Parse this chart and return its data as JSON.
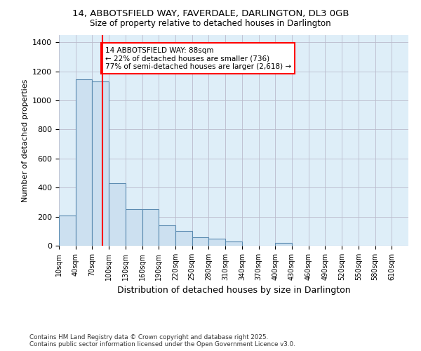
{
  "title_line1": "14, ABBOTSFIELD WAY, FAVERDALE, DARLINGTON, DL3 0GB",
  "title_line2": "Size of property relative to detached houses in Darlington",
  "xlabel": "Distribution of detached houses by size in Darlington",
  "ylabel": "Number of detached properties",
  "bar_color": "#cce0f0",
  "bar_edge_color": "#5a8ab0",
  "bg_color": "#deeef8",
  "grid_color": "#bbbbcc",
  "annotation_text": "14 ABBOTSFIELD WAY: 88sqm\n← 22% of detached houses are smaller (736)\n77% of semi-detached houses are larger (2,618) →",
  "red_line_x": 88,
  "categories": [
    "10sqm",
    "40sqm",
    "70sqm",
    "100sqm",
    "130sqm",
    "160sqm",
    "190sqm",
    "220sqm",
    "250sqm",
    "280sqm",
    "310sqm",
    "340sqm",
    "370sqm",
    "400sqm",
    "430sqm",
    "460sqm",
    "490sqm",
    "520sqm",
    "550sqm",
    "580sqm",
    "610sqm"
  ],
  "bin_edges": [
    10,
    40,
    70,
    100,
    130,
    160,
    190,
    220,
    250,
    280,
    310,
    340,
    370,
    400,
    430,
    460,
    490,
    520,
    550,
    580,
    610,
    640
  ],
  "values": [
    210,
    1145,
    1130,
    430,
    250,
    250,
    140,
    100,
    60,
    50,
    30,
    0,
    0,
    20,
    0,
    0,
    0,
    0,
    0,
    0,
    0
  ],
  "ylim": [
    0,
    1450
  ],
  "footnote": "Contains HM Land Registry data © Crown copyright and database right 2025.\nContains public sector information licensed under the Open Government Licence v3.0."
}
